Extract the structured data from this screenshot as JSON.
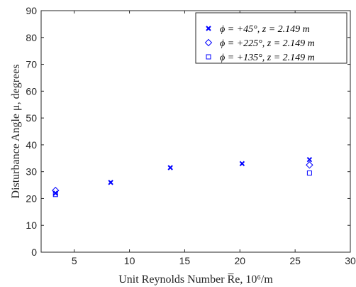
{
  "chart_data": {
    "type": "scatter",
    "title": "",
    "xlabel": "Unit Reynolds Number R̅e, 10⁶/m",
    "ylabel": "Disturbance Angle μ, degrees",
    "xlim": [
      2,
      30
    ],
    "ylim": [
      0,
      90
    ],
    "xticks": [
      5,
      10,
      15,
      20,
      25,
      30
    ],
    "yticks": [
      0,
      10,
      20,
      30,
      40,
      50,
      60,
      70,
      80,
      90
    ],
    "grid": false,
    "legend_position": "top-right",
    "series": [
      {
        "name": "ϕ = +45°, z = 2.149 m",
        "marker": "x",
        "color": "#0000ff",
        "x": [
          3.3,
          8.3,
          13.7,
          20.2,
          26.3
        ],
        "y": [
          22.0,
          26.0,
          31.5,
          33.0,
          34.5
        ]
      },
      {
        "name": "ϕ = +225°, z = 2.149 m",
        "marker": "diamond",
        "color": "#0000ff",
        "x": [
          3.3,
          26.3
        ],
        "y": [
          23.0,
          32.5
        ]
      },
      {
        "name": "ϕ = +135°, z = 2.149 m",
        "marker": "square",
        "color": "#0000ff",
        "x": [
          3.3,
          26.3
        ],
        "y": [
          21.5,
          29.5
        ]
      }
    ]
  }
}
